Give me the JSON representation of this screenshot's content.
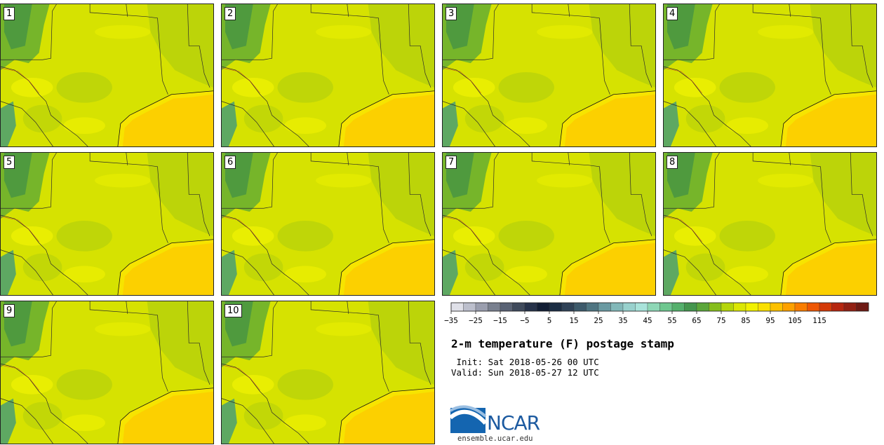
{
  "members": [
    {
      "label": "1"
    },
    {
      "label": "2"
    },
    {
      "label": "3"
    },
    {
      "label": "4"
    },
    {
      "label": "5"
    },
    {
      "label": "6"
    },
    {
      "label": "7"
    },
    {
      "label": "8"
    },
    {
      "label": "9"
    },
    {
      "label": "10"
    }
  ],
  "title": "2-m temperature (F) postage stamp",
  "init_line": " Init: Sat 2018-05-26 00 UTC",
  "valid_line": "Valid: Sun 2018-05-27 12 UTC",
  "logo": {
    "name": "NCAR",
    "url": "ensemble.ucar.edu"
  },
  "colorbar": {
    "colors": [
      "#dfe0e8",
      "#bcbfcc",
      "#9a9eae",
      "#79808f",
      "#596274",
      "#3f4a5c",
      "#26324a",
      "#121e35",
      "#1b2d44",
      "#2f4257",
      "#3d5a6b",
      "#4f7582",
      "#6a9aa2",
      "#82b8b9",
      "#98d1cd",
      "#a8e3da",
      "#8ed7b6",
      "#6ec78f",
      "#54b06c",
      "#44964e",
      "#5ba63a",
      "#86be1c",
      "#b5d60a",
      "#dbe705",
      "#f1f102",
      "#fae000",
      "#fdc100",
      "#fda100",
      "#f97d00",
      "#ee5704",
      "#d43a08",
      "#b6260f",
      "#922013",
      "#6e1a14"
    ],
    "tick_labels": [
      "−35",
      "−25",
      "−15",
      "−5",
      "5",
      "15",
      "25",
      "35",
      "45",
      "55",
      "65",
      "75",
      "85",
      "95",
      "105",
      "115"
    ]
  },
  "map_colors": {
    "land": "#d6e201",
    "cool": "#b9d30a",
    "warm": "#eef102",
    "gulf": "#fcd000",
    "gulf_edge": "#f7e400",
    "mountain_dark": "#4f9a3e",
    "mountain_mid": "#76b52a",
    "coast_cool": "#5ea862",
    "border": "#2a2a2a"
  }
}
